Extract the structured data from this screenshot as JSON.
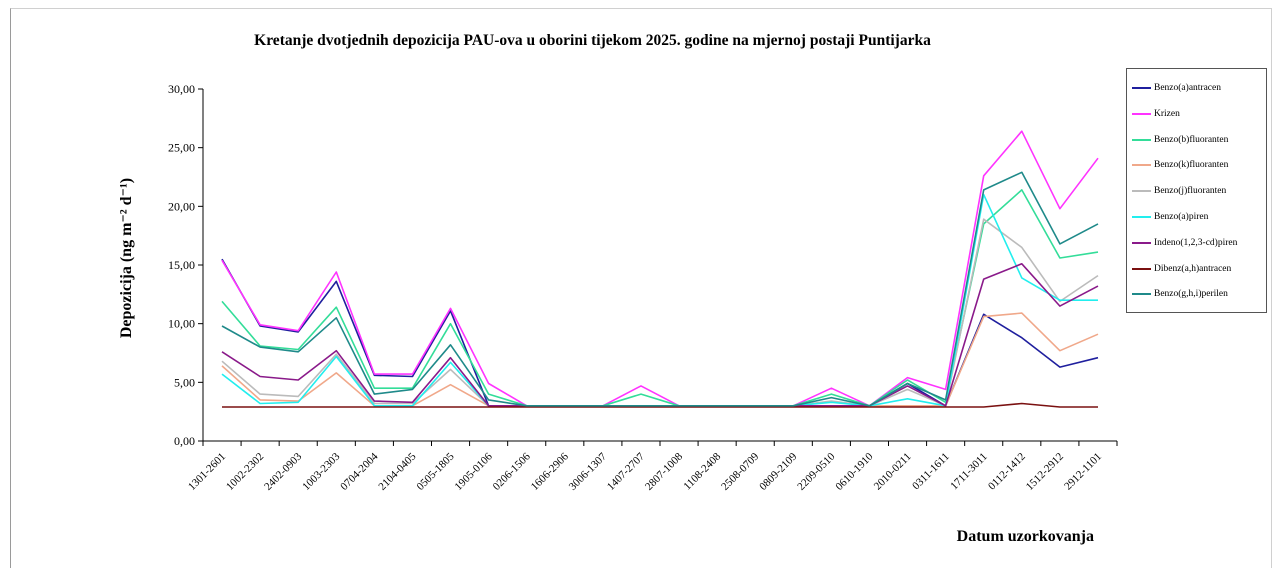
{
  "chart_data": {
    "type": "line",
    "title": "Kretanje dvotjednih depozicija PAU-ova u oborini tijekom 2025. godine na mjernoj postaji Puntijarka",
    "ylabel": "Depozicija (ng m⁻² d⁻¹)",
    "xlabel": "Datum uzorkovanja",
    "ylim": [
      0,
      30
    ],
    "yticks": [
      "0,00",
      "5,00",
      "10,00",
      "15,00",
      "20,00",
      "25,00",
      "30,00"
    ],
    "ytick_values": [
      0,
      5,
      10,
      15,
      20,
      25,
      30
    ],
    "grid": false,
    "legend_position": "right",
    "categories": [
      "1301-2601",
      "1002-2302",
      "2402-0903",
      "1003-2303",
      "0704-2004",
      "2104-0405",
      "0505-1805",
      "1905-0106",
      "0206-1506",
      "1606-2906",
      "3006-1307",
      "1407-2707",
      "2807-1008",
      "1108-2408",
      "2508-0709",
      "0809-2109",
      "2209-0510",
      "0610-1910",
      "2010-0211",
      "0311-1611",
      "1711-3011",
      "0112-1412",
      "1512-2912",
      "2912-1101"
    ],
    "series": [
      {
        "name": "Benzo(a)antracen",
        "color": "#1f1f9e",
        "values": [
          15.5,
          9.8,
          9.3,
          13.6,
          5.6,
          5.5,
          11.1,
          3.0,
          3.0,
          3.0,
          3.0,
          3.0,
          3.0,
          3.0,
          3.0,
          3.0,
          3.0,
          3.0,
          4.9,
          3.0,
          10.8,
          8.8,
          6.3,
          7.1
        ]
      },
      {
        "name": "Krizen",
        "color": "#ff33ff",
        "values": [
          15.4,
          9.9,
          9.4,
          14.4,
          5.7,
          5.7,
          11.3,
          4.9,
          3.0,
          3.0,
          3.0,
          4.7,
          3.0,
          3.0,
          3.0,
          3.0,
          4.5,
          3.0,
          5.4,
          4.4,
          22.6,
          26.4,
          19.8,
          24.1
        ]
      },
      {
        "name": "Benzo(b)fluoranten",
        "color": "#33dd99",
        "values": [
          11.9,
          8.1,
          7.8,
          11.4,
          4.5,
          4.5,
          10.0,
          4.0,
          3.0,
          3.0,
          3.0,
          4.0,
          3.0,
          3.0,
          3.0,
          3.0,
          4.0,
          3.0,
          5.2,
          3.3,
          18.5,
          21.4,
          15.6,
          16.1
        ]
      },
      {
        "name": "Benzo(k)fluoranten",
        "color": "#f0a88a",
        "values": [
          6.4,
          3.5,
          3.4,
          5.8,
          3.0,
          3.0,
          4.8,
          3.0,
          3.0,
          3.0,
          3.0,
          3.0,
          3.0,
          3.0,
          3.0,
          3.0,
          3.0,
          3.0,
          3.0,
          3.0,
          10.6,
          10.9,
          7.7,
          9.1
        ]
      },
      {
        "name": "Benzo(j)fluoranten",
        "color": "#bbbbbb",
        "values": [
          6.8,
          4.0,
          3.8,
          7.4,
          3.2,
          3.2,
          6.1,
          3.0,
          3.0,
          3.0,
          3.0,
          3.0,
          3.0,
          3.0,
          3.0,
          3.0,
          3.4,
          3.0,
          4.4,
          3.0,
          18.9,
          16.5,
          11.9,
          14.1
        ]
      },
      {
        "name": "Benzo(a)piren",
        "color": "#22eeee",
        "values": [
          5.7,
          3.2,
          3.3,
          7.2,
          3.0,
          3.0,
          6.7,
          3.0,
          3.0,
          3.0,
          3.0,
          3.0,
          3.0,
          3.0,
          3.0,
          3.0,
          3.3,
          3.0,
          3.6,
          3.0,
          21.0,
          13.9,
          12.0,
          12.0
        ]
      },
      {
        "name": "Indeno(1,2,3-cd)piren",
        "color": "#8a1a8a",
        "values": [
          7.6,
          5.5,
          5.2,
          7.7,
          3.4,
          3.3,
          7.1,
          3.0,
          3.0,
          3.0,
          3.0,
          3.0,
          3.0,
          3.0,
          3.0,
          3.0,
          3.0,
          3.0,
          4.7,
          3.0,
          13.8,
          15.1,
          11.5,
          13.2
        ]
      },
      {
        "name": "Dibenz(a,h)antracen",
        "color": "#7a1010",
        "values": [
          2.9,
          2.9,
          2.9,
          2.9,
          2.9,
          2.9,
          2.9,
          2.9,
          2.9,
          2.9,
          2.9,
          2.9,
          2.9,
          2.9,
          2.9,
          2.9,
          2.9,
          2.9,
          2.9,
          2.9,
          2.9,
          3.2,
          2.9,
          2.9
        ]
      },
      {
        "name": "Benzo(g,h,i)perilen",
        "color": "#1f8a8a",
        "values": [
          9.8,
          8.0,
          7.6,
          10.5,
          4.0,
          4.4,
          8.2,
          3.5,
          3.0,
          3.0,
          3.0,
          3.0,
          3.0,
          3.0,
          3.0,
          3.0,
          3.7,
          3.0,
          4.9,
          3.5,
          21.4,
          22.9,
          16.8,
          18.5
        ]
      }
    ]
  }
}
